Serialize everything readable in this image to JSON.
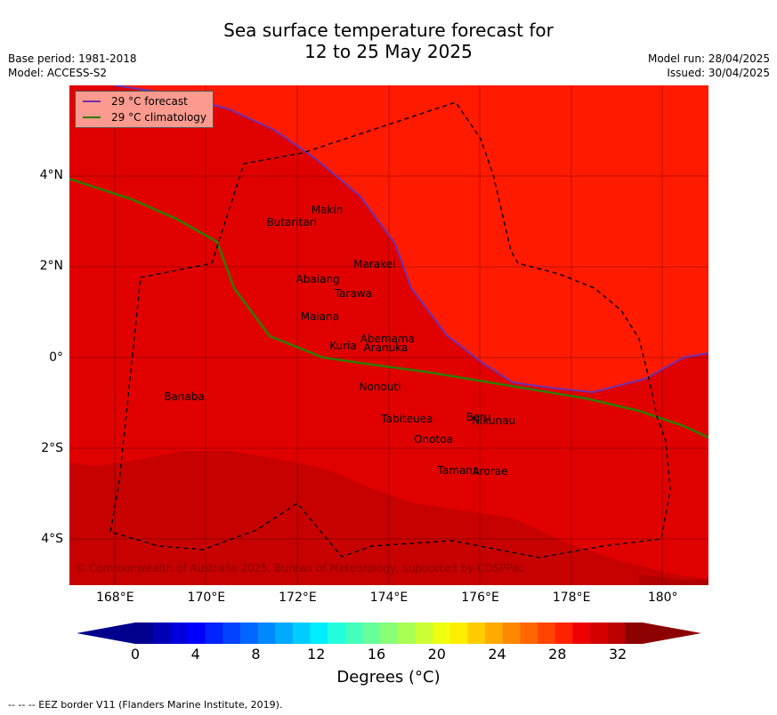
{
  "title": {
    "line1": "Sea surface temperature forecast for",
    "line2": "12 to 25 May 2025"
  },
  "meta": {
    "base_period": "Base period: 1981-2018",
    "model": "Model: ACCESS-S2",
    "model_run": "Model run: 28/04/2025",
    "issued": "Issued: 30/04/2025"
  },
  "legend": {
    "forecast_label": "29 °C  forecast",
    "climatology_label": "29 °C  climatology",
    "forecast_color": "#7030b0",
    "climatology_color": "#2e7d00"
  },
  "map": {
    "lon_range": [
      167,
      181
    ],
    "lat_range": [
      -5,
      6
    ],
    "y_ticks": [
      {
        "lat": 4,
        "label": "4°N"
      },
      {
        "lat": 2,
        "label": "2°N"
      },
      {
        "lat": 0,
        "label": "0°"
      },
      {
        "lat": -2,
        "label": "2°S"
      },
      {
        "lat": -4,
        "label": "4°S"
      }
    ],
    "x_ticks": [
      {
        "lon": 168,
        "label": "168°E"
      },
      {
        "lon": 170,
        "label": "170°E"
      },
      {
        "lon": 172,
        "label": "172°E"
      },
      {
        "lon": 174,
        "label": "174°E"
      },
      {
        "lon": 176,
        "label": "176°E"
      },
      {
        "lon": 178,
        "label": "178°E"
      },
      {
        "lon": 180,
        "label": "180°"
      }
    ],
    "zone_colors": {
      "above_29": "#ff1a00",
      "band_28_30": "#e10000",
      "above_30": "#c70000",
      "lowest": "#b00000"
    },
    "islands": [
      {
        "name": "Makin",
        "lon": 173.0,
        "lat": 3.2
      },
      {
        "name": "Butaritari",
        "lon": 172.8,
        "lat": 3.0
      },
      {
        "name": "Marakei",
        "lon": 173.3,
        "lat": 2.0
      },
      {
        "name": "Abaiang",
        "lon": 172.9,
        "lat": 1.8
      },
      {
        "name": "Tarawa",
        "lon": 173.0,
        "lat": 1.4
      },
      {
        "name": "Maiana",
        "lon": 173.0,
        "lat": 0.9
      },
      {
        "name": "Abemama",
        "lon": 173.8,
        "lat": 0.4
      },
      {
        "name": "Kuria",
        "lon": 173.4,
        "lat": 0.2
      },
      {
        "name": "Aranuka",
        "lon": 173.6,
        "lat": 0.2
      },
      {
        "name": "Nonouti",
        "lon": 174.4,
        "lat": -0.7
      },
      {
        "name": "Banaba",
        "lon": 169.5,
        "lat": -0.9
      },
      {
        "name": "Tabiteuea",
        "lon": 175.0,
        "lat": -1.4
      },
      {
        "name": "Beru",
        "lon": 176.0,
        "lat": -1.35
      },
      {
        "name": "Nikunau",
        "lon": 176.4,
        "lat": -1.4
      },
      {
        "name": "Onotoa",
        "lon": 175.6,
        "lat": -1.8
      },
      {
        "name": "Tamana",
        "lon": 176.0,
        "lat": -2.5
      },
      {
        "name": "Arorae",
        "lon": 176.8,
        "lat": -2.6
      }
    ],
    "copyright": "© Commonwealth of Australia 2025, Bureau of Meteorology, supported by COSPPac"
  },
  "colorbar": {
    "ticks": [
      "0",
      "4",
      "8",
      "12",
      "16",
      "20",
      "24",
      "28",
      "32"
    ],
    "units_label": "Degrees (°C)",
    "colors": [
      "#00008c",
      "#0000b4",
      "#0000dc",
      "#0000ff",
      "#0022ff",
      "#0044ff",
      "#0066ff",
      "#0088ff",
      "#00aaff",
      "#00ccff",
      "#00eeff",
      "#22ffdd",
      "#44ffbb",
      "#66ff99",
      "#88ff77",
      "#aaff55",
      "#ccff33",
      "#eeff11",
      "#ffee00",
      "#ffcc00",
      "#ffaa00",
      "#ff8800",
      "#ff6600",
      "#ff4400",
      "#ff2200",
      "#ee0000",
      "#d40000",
      "#bb0000",
      "#8c0000"
    ],
    "under_color": "#00008c",
    "over_color": "#8c0000"
  },
  "footnote": "--  --  -- EEZ border V11 (Flanders Marine Institute, 2019)."
}
